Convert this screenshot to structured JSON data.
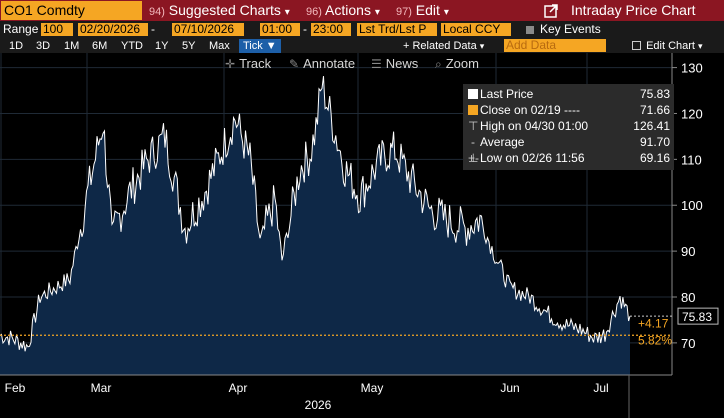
{
  "toolbar": {
    "security": "CO1 Comdty",
    "suggested_num": "94)",
    "suggested_label": "Suggested Charts",
    "suggested_caret": "▾",
    "actions_num": "96)",
    "actions_label": "Actions",
    "actions_caret": "▾",
    "edit_num": "97)",
    "edit_label": "Edit",
    "edit_caret": "▾",
    "export_icon": "export-icon",
    "window_title": "Intraday Price Chart"
  },
  "settings": {
    "range_label": "Range",
    "range_value": "100",
    "start_date": "02/20/2026",
    "end_date": "07/10/2026",
    "start_time": "01:00",
    "end_time": "23:00",
    "price_type": "Lst Trd/Lst P",
    "currency": "Local CCY",
    "key_events_label": "Key Events",
    "date_dash": "-",
    "time_dash": "-"
  },
  "ranges": {
    "items": [
      "1D",
      "3D",
      "1M",
      "6M",
      "YTD",
      "1Y",
      "5Y",
      "Max"
    ],
    "tick_label": "Tick ▼",
    "related_data": "+ Related Data",
    "related_caret": "▾",
    "add_data_placeholder": "Add Data",
    "edit_chart": "Edit Chart",
    "edit_chart_caret": "▾"
  },
  "tools": {
    "track": "Track",
    "annotate": "Annotate",
    "news": "News",
    "zoom": "Zoom"
  },
  "legend": {
    "rows": [
      {
        "label": "Last Price",
        "value": "75.83"
      },
      {
        "label": "Close on 02/19 ----",
        "value": "71.66"
      },
      {
        "label": "High on 04/30 01:00",
        "value": "126.41"
      },
      {
        "label": "Average",
        "value": "91.70"
      },
      {
        "label": "Low on 02/26 11:56",
        "value": "69.16"
      }
    ]
  },
  "colors": {
    "area_fill": "#0e2847",
    "line": "#ffffff",
    "ref_line": "#f5a623",
    "accent": "#f5a623",
    "title_bar": "#8b1622"
  },
  "chart_data": {
    "type": "area",
    "series_name": "Last Price",
    "x": [
      "02/20",
      "02/23",
      "02/26",
      "03/02",
      "03/05",
      "03/09",
      "03/11",
      "03/13",
      "03/17",
      "03/20",
      "03/24",
      "03/27",
      "03/31",
      "04/03",
      "04/07",
      "04/10",
      "04/14",
      "04/17",
      "04/21",
      "04/24",
      "04/28",
      "04/30",
      "05/04",
      "05/07",
      "05/11",
      "05/14",
      "05/18",
      "05/21",
      "05/26",
      "05/29",
      "06/02",
      "06/05",
      "06/09",
      "06/12",
      "06/16",
      "06/19",
      "06/23",
      "06/26",
      "06/30",
      "07/03",
      "07/07",
      "07/10"
    ],
    "values": [
      71.7,
      71.0,
      69.2,
      80.0,
      84.0,
      100.0,
      118.0,
      94.0,
      103.0,
      110.0,
      115.0,
      95.0,
      103.0,
      119.0,
      110.0,
      92.0,
      101.0,
      88.0,
      108.0,
      111.0,
      117.0,
      126.4,
      108.0,
      102.0,
      108.0,
      111.0,
      112.0,
      106.0,
      99.0,
      97.0,
      95.0,
      97.0,
      89.0,
      82.0,
      80.0,
      76.0,
      74.0,
      73.0,
      71.0,
      72.0,
      80.0,
      75.83
    ],
    "x_ticks": [
      "Feb",
      "Mar",
      "Apr",
      "May",
      "Jun",
      "Jul"
    ],
    "x_year": "2026",
    "y_ticks": [
      70,
      80,
      90,
      100,
      110,
      120,
      130
    ],
    "ylim": [
      63,
      131
    ],
    "reference_value": 71.66,
    "last_value_label": "75.83",
    "change_label": "+4.17",
    "change_pct_label": "5.82%"
  }
}
